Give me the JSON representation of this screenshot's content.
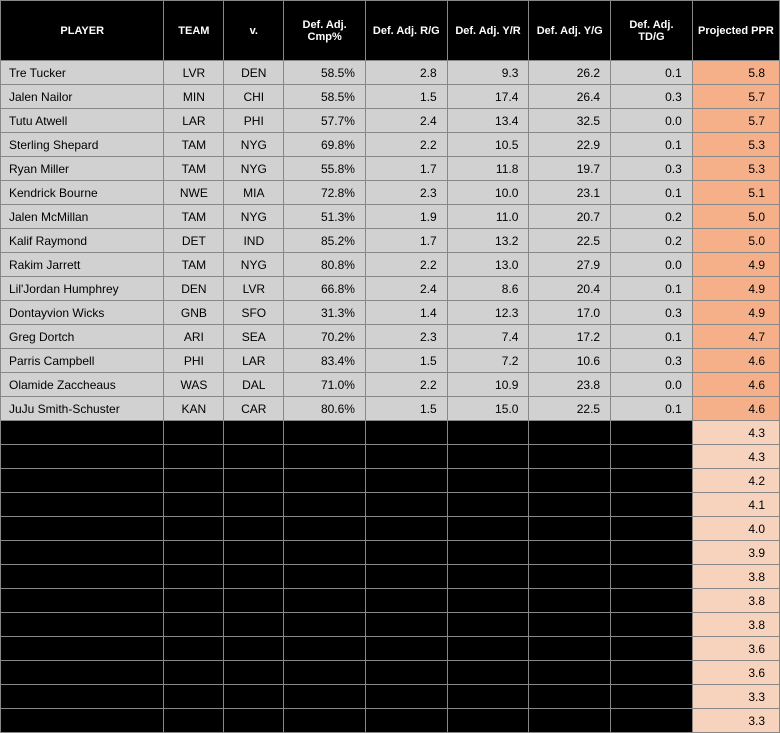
{
  "table": {
    "columns": [
      {
        "key": "player",
        "label": "PLAYER",
        "class": "player-col",
        "cell_class": "player-cell"
      },
      {
        "key": "team",
        "label": "TEAM",
        "class": "team-col",
        "cell_class": "center-cell"
      },
      {
        "key": "vs",
        "label": "v.",
        "class": "vs-col",
        "cell_class": "center-cell"
      },
      {
        "key": "cmp",
        "label": "Def. Adj. Cmp%",
        "class": "stat-col",
        "cell_class": "num-cell"
      },
      {
        "key": "rg",
        "label": "Def. Adj. R/G",
        "class": "stat-col",
        "cell_class": "num-cell"
      },
      {
        "key": "yr",
        "label": "Def. Adj. Y/R",
        "class": "stat-col",
        "cell_class": "num-cell"
      },
      {
        "key": "yg",
        "label": "Def. Adj. Y/G",
        "class": "stat-col",
        "cell_class": "num-cell"
      },
      {
        "key": "tdg",
        "label": "Def. Adj. TD/G",
        "class": "stat-col",
        "cell_class": "num-cell"
      },
      {
        "key": "ppr",
        "label": "Projected PPR",
        "class": "ppr-col",
        "cell_class": "ppr-cell"
      }
    ],
    "rows": [
      {
        "hidden": false,
        "player": "Tre Tucker",
        "team": "LVR",
        "vs": "DEN",
        "cmp": "58.5%",
        "rg": "2.8",
        "yr": "9.3",
        "yg": "26.2",
        "tdg": "0.1",
        "ppr": "5.8"
      },
      {
        "hidden": false,
        "player": "Jalen Nailor",
        "team": "MIN",
        "vs": "CHI",
        "cmp": "58.5%",
        "rg": "1.5",
        "yr": "17.4",
        "yg": "26.4",
        "tdg": "0.3",
        "ppr": "5.7"
      },
      {
        "hidden": false,
        "player": "Tutu Atwell",
        "team": "LAR",
        "vs": "PHI",
        "cmp": "57.7%",
        "rg": "2.4",
        "yr": "13.4",
        "yg": "32.5",
        "tdg": "0.0",
        "ppr": "5.7"
      },
      {
        "hidden": false,
        "player": "Sterling Shepard",
        "team": "TAM",
        "vs": "NYG",
        "cmp": "69.8%",
        "rg": "2.2",
        "yr": "10.5",
        "yg": "22.9",
        "tdg": "0.1",
        "ppr": "5.3"
      },
      {
        "hidden": false,
        "player": "Ryan Miller",
        "team": "TAM",
        "vs": "NYG",
        "cmp": "55.8%",
        "rg": "1.7",
        "yr": "11.8",
        "yg": "19.7",
        "tdg": "0.3",
        "ppr": "5.3"
      },
      {
        "hidden": false,
        "player": "Kendrick Bourne",
        "team": "NWE",
        "vs": "MIA",
        "cmp": "72.8%",
        "rg": "2.3",
        "yr": "10.0",
        "yg": "23.1",
        "tdg": "0.1",
        "ppr": "5.1"
      },
      {
        "hidden": false,
        "player": "Jalen McMillan",
        "team": "TAM",
        "vs": "NYG",
        "cmp": "51.3%",
        "rg": "1.9",
        "yr": "11.0",
        "yg": "20.7",
        "tdg": "0.2",
        "ppr": "5.0"
      },
      {
        "hidden": false,
        "player": "Kalif Raymond",
        "team": "DET",
        "vs": "IND",
        "cmp": "85.2%",
        "rg": "1.7",
        "yr": "13.2",
        "yg": "22.5",
        "tdg": "0.2",
        "ppr": "5.0"
      },
      {
        "hidden": false,
        "player": "Rakim Jarrett",
        "team": "TAM",
        "vs": "NYG",
        "cmp": "80.8%",
        "rg": "2.2",
        "yr": "13.0",
        "yg": "27.9",
        "tdg": "0.0",
        "ppr": "4.9"
      },
      {
        "hidden": false,
        "player": "Lil'Jordan Humphrey",
        "team": "DEN",
        "vs": "LVR",
        "cmp": "66.8%",
        "rg": "2.4",
        "yr": "8.6",
        "yg": "20.4",
        "tdg": "0.1",
        "ppr": "4.9"
      },
      {
        "hidden": false,
        "player": "Dontayvion Wicks",
        "team": "GNB",
        "vs": "SFO",
        "cmp": "31.3%",
        "rg": "1.4",
        "yr": "12.3",
        "yg": "17.0",
        "tdg": "0.3",
        "ppr": "4.9"
      },
      {
        "hidden": false,
        "player": "Greg Dortch",
        "team": "ARI",
        "vs": "SEA",
        "cmp": "70.2%",
        "rg": "2.3",
        "yr": "7.4",
        "yg": "17.2",
        "tdg": "0.1",
        "ppr": "4.7"
      },
      {
        "hidden": false,
        "player": "Parris Campbell",
        "team": "PHI",
        "vs": "LAR",
        "cmp": "83.4%",
        "rg": "1.5",
        "yr": "7.2",
        "yg": "10.6",
        "tdg": "0.3",
        "ppr": "4.6"
      },
      {
        "hidden": false,
        "player": "Olamide Zaccheaus",
        "team": "WAS",
        "vs": "DAL",
        "cmp": "71.0%",
        "rg": "2.2",
        "yr": "10.9",
        "yg": "23.8",
        "tdg": "0.0",
        "ppr": "4.6"
      },
      {
        "hidden": false,
        "player": "JuJu Smith-Schuster",
        "team": "KAN",
        "vs": "CAR",
        "cmp": "80.6%",
        "rg": "1.5",
        "yr": "15.0",
        "yg": "22.5",
        "tdg": "0.1",
        "ppr": "4.6"
      },
      {
        "hidden": true,
        "ppr": "4.3"
      },
      {
        "hidden": true,
        "ppr": "4.3"
      },
      {
        "hidden": true,
        "ppr": "4.2"
      },
      {
        "hidden": true,
        "ppr": "4.1"
      },
      {
        "hidden": true,
        "ppr": "4.0"
      },
      {
        "hidden": true,
        "ppr": "3.9"
      },
      {
        "hidden": true,
        "ppr": "3.8"
      },
      {
        "hidden": true,
        "ppr": "3.8"
      },
      {
        "hidden": true,
        "ppr": "3.8"
      },
      {
        "hidden": true,
        "ppr": "3.6"
      },
      {
        "hidden": true,
        "ppr": "3.6"
      },
      {
        "hidden": true,
        "ppr": "3.3"
      },
      {
        "hidden": true,
        "ppr": "3.3"
      }
    ],
    "colors": {
      "header_bg": "#000000",
      "header_fg": "#ffffff",
      "row_bg": "#d1d1d1",
      "hidden_bg": "#000000",
      "ppr_visible_bg": "#f5b08a",
      "ppr_hidden_bg": "#f7d3bd",
      "border": "#888888"
    }
  }
}
